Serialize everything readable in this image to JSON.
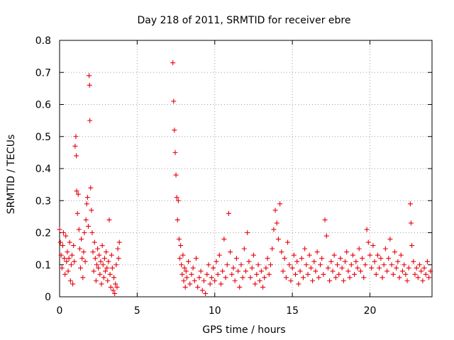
{
  "chart_data": {
    "type": "scatter",
    "title": "Day 218 of 2011, SRMTID for receiver ebre",
    "xlabel": "GPS time / hours",
    "ylabel": "SRMTID / TECUs",
    "xlim": [
      0,
      24
    ],
    "ylim": [
      0,
      0.8
    ],
    "x_ticks": [
      0,
      5,
      10,
      15,
      20
    ],
    "x_tick_labels": [
      "0",
      "5",
      "10",
      "15",
      "20"
    ],
    "y_ticks": [
      0,
      0.1,
      0.2,
      0.3,
      0.4,
      0.5,
      0.6,
      0.7,
      0.8
    ],
    "y_tick_labels": [
      "0",
      "0.1",
      "0.2",
      "0.3",
      "0.4",
      "0.5",
      "0.6",
      "0.7",
      "0.8"
    ],
    "grid": true,
    "marker": "+",
    "marker_color": "#e8000b",
    "series": [
      {
        "name": "SRMTID",
        "points": [
          [
            0.0,
            0.21
          ],
          [
            0.05,
            0.17
          ],
          [
            0.1,
            0.13
          ],
          [
            0.15,
            0.09
          ],
          [
            0.2,
            0.16
          ],
          [
            0.25,
            0.2
          ],
          [
            0.3,
            0.12
          ],
          [
            0.35,
            0.07
          ],
          [
            0.4,
            0.19
          ],
          [
            0.45,
            0.11
          ],
          [
            0.5,
            0.14
          ],
          [
            0.55,
            0.08
          ],
          [
            0.6,
            0.12
          ],
          [
            0.65,
            0.17
          ],
          [
            0.7,
            0.05
          ],
          [
            0.75,
            0.1
          ],
          [
            0.8,
            0.13
          ],
          [
            0.85,
            0.04
          ],
          [
            0.9,
            0.16
          ],
          [
            0.95,
            0.11
          ],
          [
            1.0,
            0.47
          ],
          [
            1.05,
            0.5
          ],
          [
            1.08,
            0.44
          ],
          [
            1.1,
            0.33
          ],
          [
            1.15,
            0.26
          ],
          [
            1.2,
            0.32
          ],
          [
            1.25,
            0.21
          ],
          [
            1.3,
            0.15
          ],
          [
            1.35,
            0.09
          ],
          [
            1.4,
            0.18
          ],
          [
            1.45,
            0.12
          ],
          [
            1.5,
            0.06
          ],
          [
            1.55,
            0.14
          ],
          [
            1.6,
            0.2
          ],
          [
            1.65,
            0.11
          ],
          [
            1.7,
            0.24
          ],
          [
            1.75,
            0.29
          ],
          [
            1.8,
            0.31
          ],
          [
            1.85,
            0.22
          ],
          [
            1.9,
            0.69
          ],
          [
            1.93,
            0.66
          ],
          [
            1.95,
            0.55
          ],
          [
            2.0,
            0.34
          ],
          [
            2.05,
            0.27
          ],
          [
            2.1,
            0.2
          ],
          [
            2.15,
            0.14
          ],
          [
            2.2,
            0.08
          ],
          [
            2.25,
            0.17
          ],
          [
            2.3,
            0.12
          ],
          [
            2.35,
            0.05
          ],
          [
            2.4,
            0.1
          ],
          [
            2.45,
            0.15
          ],
          [
            2.5,
            0.09
          ],
          [
            2.55,
            0.13
          ],
          [
            2.6,
            0.07
          ],
          [
            2.65,
            0.11
          ],
          [
            2.7,
            0.04
          ],
          [
            2.75,
            0.16
          ],
          [
            2.8,
            0.1
          ],
          [
            2.85,
            0.06
          ],
          [
            2.9,
            0.12
          ],
          [
            2.95,
            0.08
          ],
          [
            3.0,
            0.14
          ],
          [
            3.05,
            0.09
          ],
          [
            3.1,
            0.05
          ],
          [
            3.15,
            0.11
          ],
          [
            3.2,
            0.24
          ],
          [
            3.25,
            0.07
          ],
          [
            3.3,
            0.03
          ],
          [
            3.35,
            0.13
          ],
          [
            3.4,
            0.09
          ],
          [
            3.45,
            0.02
          ],
          [
            3.5,
            0.06
          ],
          [
            3.55,
            0.01
          ],
          [
            3.6,
            0.04
          ],
          [
            3.65,
            0.1
          ],
          [
            3.7,
            0.03
          ],
          [
            3.75,
            0.15
          ],
          [
            3.8,
            0.12
          ],
          [
            3.85,
            0.17
          ],
          [
            7.3,
            0.73
          ],
          [
            7.35,
            0.61
          ],
          [
            7.4,
            0.52
          ],
          [
            7.45,
            0.45
          ],
          [
            7.5,
            0.38
          ],
          [
            7.55,
            0.31
          ],
          [
            7.6,
            0.24
          ],
          [
            7.65,
            0.3
          ],
          [
            7.7,
            0.18
          ],
          [
            7.75,
            0.12
          ],
          [
            7.8,
            0.16
          ],
          [
            7.85,
            0.1
          ],
          [
            7.9,
            0.07
          ],
          [
            7.95,
            0.13
          ],
          [
            8.0,
            0.05
          ],
          [
            8.05,
            0.09
          ],
          [
            8.1,
            0.03
          ],
          [
            8.15,
            0.08
          ],
          [
            8.2,
            0.06
          ],
          [
            8.3,
            0.11
          ],
          [
            8.4,
            0.04
          ],
          [
            8.5,
            0.07
          ],
          [
            8.6,
            0.09
          ],
          [
            8.7,
            0.05
          ],
          [
            8.8,
            0.12
          ],
          [
            8.9,
            0.03
          ],
          [
            9.0,
            0.06
          ],
          [
            9.1,
            0.08
          ],
          [
            9.2,
            0.02
          ],
          [
            9.3,
            0.05
          ],
          [
            9.4,
            0.01
          ],
          [
            9.5,
            0.07
          ],
          [
            9.6,
            0.1
          ],
          [
            9.7,
            0.04
          ],
          [
            9.8,
            0.06
          ],
          [
            9.9,
            0.09
          ],
          [
            10.0,
            0.05
          ],
          [
            10.1,
            0.11
          ],
          [
            10.2,
            0.07
          ],
          [
            10.3,
            0.13
          ],
          [
            10.4,
            0.04
          ],
          [
            10.5,
            0.08
          ],
          [
            10.6,
            0.18
          ],
          [
            10.7,
            0.06
          ],
          [
            10.8,
            0.1
          ],
          [
            10.9,
            0.26
          ],
          [
            11.0,
            0.14
          ],
          [
            11.1,
            0.07
          ],
          [
            11.2,
            0.09
          ],
          [
            11.3,
            0.05
          ],
          [
            11.4,
            0.12
          ],
          [
            11.5,
            0.08
          ],
          [
            11.6,
            0.03
          ],
          [
            11.7,
            0.1
          ],
          [
            11.8,
            0.06
          ],
          [
            11.9,
            0.15
          ],
          [
            12.0,
            0.08
          ],
          [
            12.1,
            0.2
          ],
          [
            12.2,
            0.11
          ],
          [
            12.3,
            0.06
          ],
          [
            12.4,
            0.09
          ],
          [
            12.5,
            0.13
          ],
          [
            12.6,
            0.04
          ],
          [
            12.7,
            0.07
          ],
          [
            12.8,
            0.1
          ],
          [
            12.9,
            0.05
          ],
          [
            13.0,
            0.08
          ],
          [
            13.1,
            0.03
          ],
          [
            13.2,
            0.06
          ],
          [
            13.3,
            0.09
          ],
          [
            13.4,
            0.12
          ],
          [
            13.5,
            0.07
          ],
          [
            13.6,
            0.1
          ],
          [
            13.7,
            0.15
          ],
          [
            13.8,
            0.21
          ],
          [
            13.9,
            0.27
          ],
          [
            14.0,
            0.23
          ],
          [
            14.1,
            0.18
          ],
          [
            14.2,
            0.29
          ],
          [
            14.3,
            0.14
          ],
          [
            14.4,
            0.08
          ],
          [
            14.5,
            0.12
          ],
          [
            14.6,
            0.06
          ],
          [
            14.7,
            0.17
          ],
          [
            14.8,
            0.1
          ],
          [
            14.9,
            0.05
          ],
          [
            15.0,
            0.09
          ],
          [
            15.1,
            0.13
          ],
          [
            15.2,
            0.07
          ],
          [
            15.3,
            0.11
          ],
          [
            15.4,
            0.04
          ],
          [
            15.5,
            0.08
          ],
          [
            15.6,
            0.12
          ],
          [
            15.7,
            0.06
          ],
          [
            15.8,
            0.15
          ],
          [
            15.9,
            0.1
          ],
          [
            16.0,
            0.07
          ],
          [
            16.1,
            0.13
          ],
          [
            16.2,
            0.09
          ],
          [
            16.3,
            0.05
          ],
          [
            16.4,
            0.11
          ],
          [
            16.5,
            0.08
          ],
          [
            16.6,
            0.14
          ],
          [
            16.7,
            0.06
          ],
          [
            16.8,
            0.1
          ],
          [
            16.9,
            0.12
          ],
          [
            17.0,
            0.07
          ],
          [
            17.1,
            0.24
          ],
          [
            17.2,
            0.19
          ],
          [
            17.3,
            0.09
          ],
          [
            17.4,
            0.05
          ],
          [
            17.5,
            0.11
          ],
          [
            17.6,
            0.08
          ],
          [
            17.7,
            0.13
          ],
          [
            17.8,
            0.06
          ],
          [
            17.9,
            0.1
          ],
          [
            18.0,
            0.07
          ],
          [
            18.1,
            0.12
          ],
          [
            18.2,
            0.09
          ],
          [
            18.3,
            0.05
          ],
          [
            18.4,
            0.11
          ],
          [
            18.5,
            0.14
          ],
          [
            18.6,
            0.08
          ],
          [
            18.7,
            0.06
          ],
          [
            18.8,
            0.1
          ],
          [
            18.9,
            0.13
          ],
          [
            19.0,
            0.07
          ],
          [
            19.1,
            0.11
          ],
          [
            19.2,
            0.09
          ],
          [
            19.3,
            0.15
          ],
          [
            19.4,
            0.08
          ],
          [
            19.5,
            0.12
          ],
          [
            19.6,
            0.06
          ],
          [
            19.7,
            0.1
          ],
          [
            19.8,
            0.21
          ],
          [
            19.9,
            0.17
          ],
          [
            20.0,
            0.13
          ],
          [
            20.1,
            0.09
          ],
          [
            20.2,
            0.16
          ],
          [
            20.3,
            0.11
          ],
          [
            20.4,
            0.07
          ],
          [
            20.5,
            0.13
          ],
          [
            20.6,
            0.09
          ],
          [
            20.7,
            0.12
          ],
          [
            20.8,
            0.06
          ],
          [
            20.9,
            0.1
          ],
          [
            21.0,
            0.15
          ],
          [
            21.1,
            0.08
          ],
          [
            21.2,
            0.12
          ],
          [
            21.3,
            0.18
          ],
          [
            21.4,
            0.1
          ],
          [
            21.5,
            0.07
          ],
          [
            21.6,
            0.14
          ],
          [
            21.7,
            0.09
          ],
          [
            21.8,
            0.11
          ],
          [
            21.9,
            0.06
          ],
          [
            22.0,
            0.13
          ],
          [
            22.1,
            0.08
          ],
          [
            22.2,
            0.1
          ],
          [
            22.3,
            0.07
          ],
          [
            22.4,
            0.05
          ],
          [
            22.5,
            0.09
          ],
          [
            22.6,
            0.29
          ],
          [
            22.65,
            0.23
          ],
          [
            22.7,
            0.16
          ],
          [
            22.8,
            0.11
          ],
          [
            22.9,
            0.07
          ],
          [
            23.0,
            0.09
          ],
          [
            23.1,
            0.06
          ],
          [
            23.2,
            0.1
          ],
          [
            23.3,
            0.08
          ],
          [
            23.4,
            0.05
          ],
          [
            23.5,
            0.09
          ],
          [
            23.6,
            0.07
          ],
          [
            23.7,
            0.11
          ],
          [
            23.8,
            0.06
          ],
          [
            23.9,
            0.08
          ]
        ]
      }
    ]
  }
}
